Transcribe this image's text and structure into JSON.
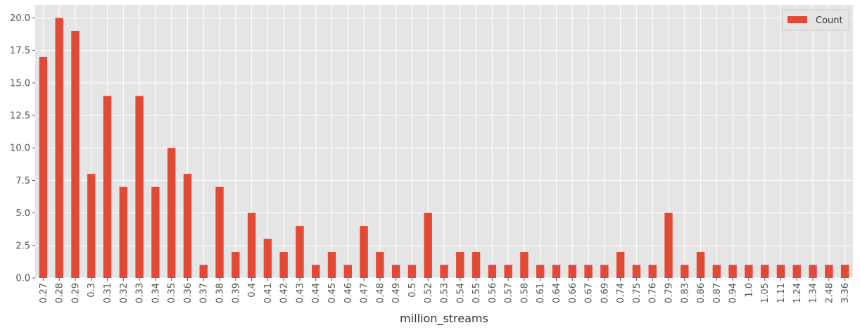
{
  "chart_data": {
    "type": "bar",
    "xlabel": "million_streams",
    "ylabel": "",
    "ylim": [
      0,
      21
    ],
    "yticks": [
      "0.0",
      "2.5",
      "5.0",
      "7.5",
      "10.0",
      "12.5",
      "15.0",
      "17.5",
      "20.0"
    ],
    "grid": true,
    "legend_position": "top-right",
    "categories": [
      "0.27",
      "0.28",
      "0.29",
      "0.3",
      "0.31",
      "0.32",
      "0.33",
      "0.34",
      "0.35",
      "0.36",
      "0.37",
      "0.38",
      "0.39",
      "0.4",
      "0.41",
      "0.42",
      "0.43",
      "0.44",
      "0.45",
      "0.46",
      "0.47",
      "0.48",
      "0.49",
      "0.5",
      "0.52",
      "0.53",
      "0.54",
      "0.55",
      "0.56",
      "0.57",
      "0.58",
      "0.61",
      "0.64",
      "0.66",
      "0.67",
      "0.69",
      "0.74",
      "0.75",
      "0.76",
      "0.79",
      "0.83",
      "0.86",
      "0.87",
      "0.94",
      "1.0",
      "1.05",
      "1.11",
      "1.24",
      "1.34",
      "2.48",
      "3.36"
    ],
    "series": [
      {
        "name": "Count",
        "color": "#e24a33",
        "values": [
          17,
          20,
          19,
          8,
          14,
          7,
          14,
          7,
          10,
          8,
          1,
          7,
          2,
          5,
          3,
          2,
          4,
          1,
          2,
          1,
          4,
          2,
          1,
          1,
          5,
          1,
          2,
          2,
          1,
          1,
          2,
          1,
          1,
          1,
          1,
          1,
          2,
          1,
          1,
          5,
          1,
          2,
          1,
          1,
          1,
          1,
          1,
          1,
          1,
          1,
          1
        ]
      }
    ],
    "colors": {
      "background": "#e5e5e5",
      "grid": "#ffffff"
    }
  }
}
